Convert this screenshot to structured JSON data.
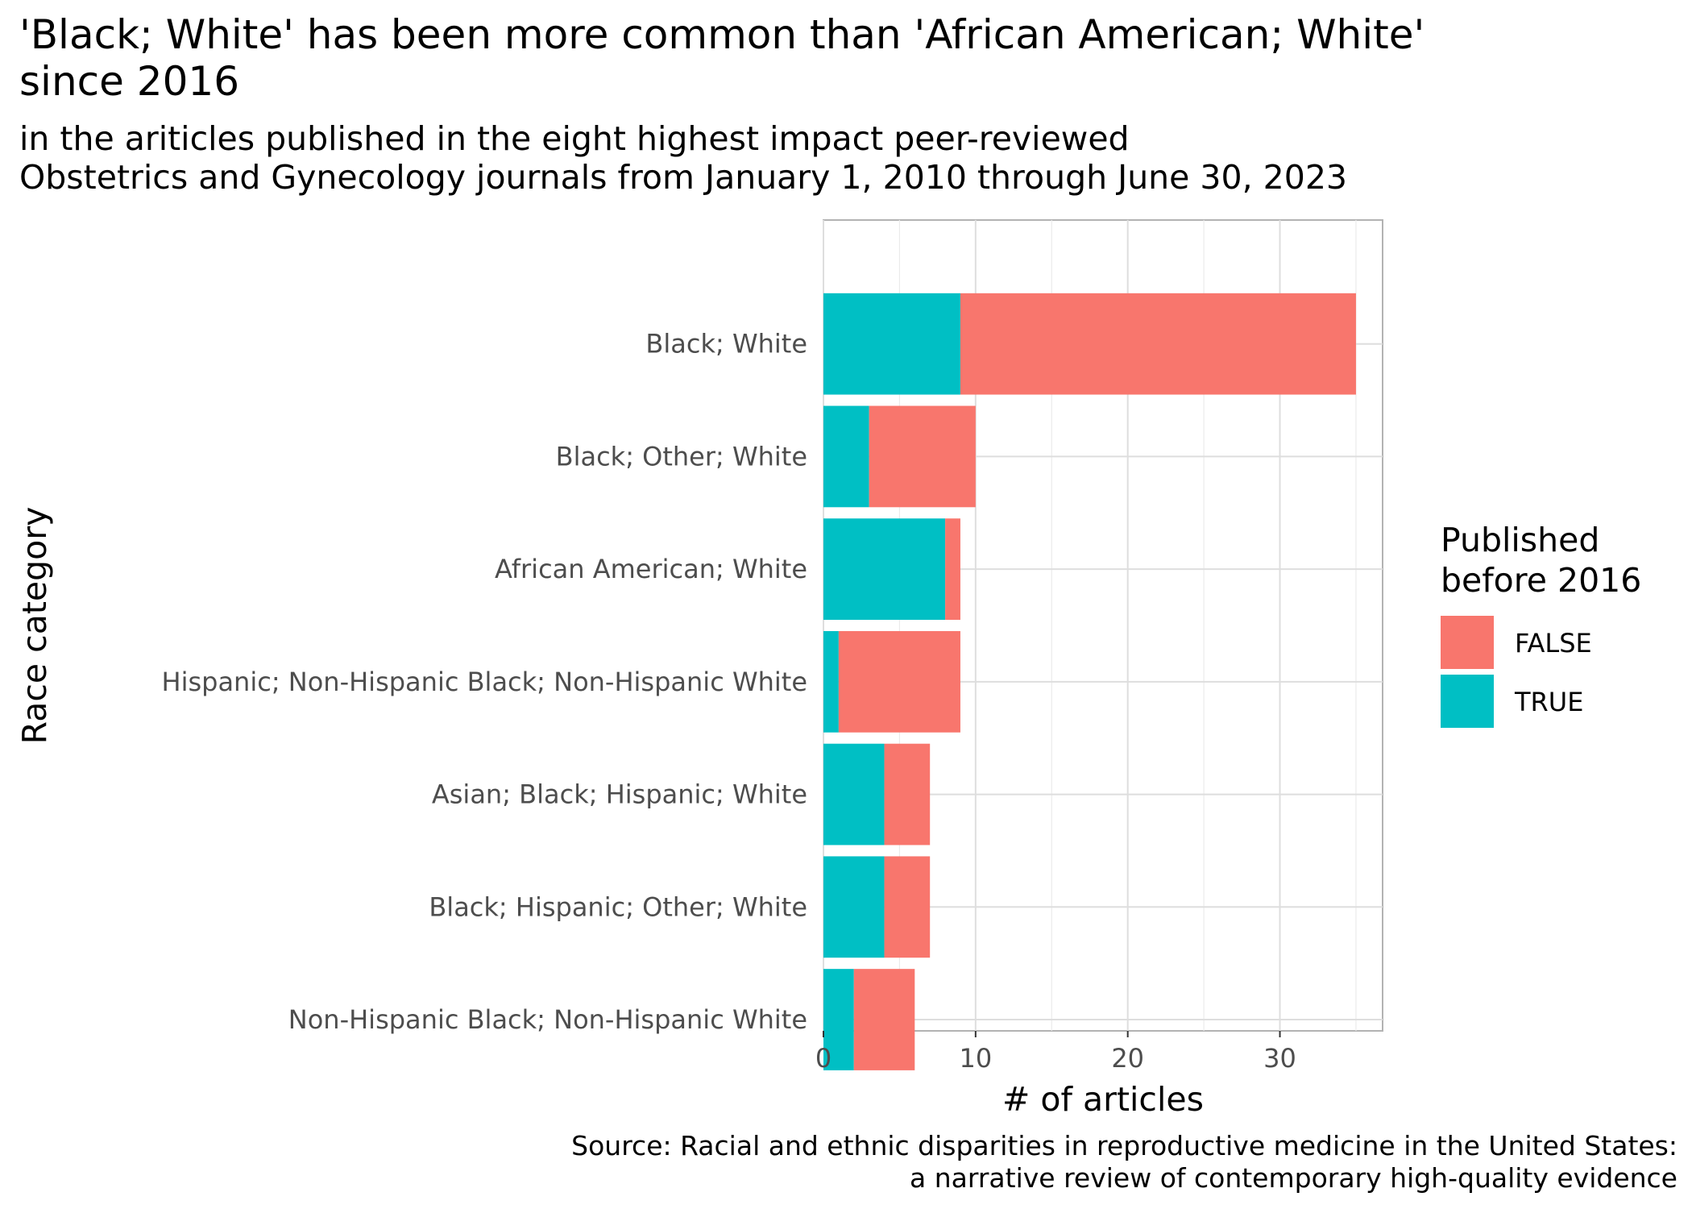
{
  "title": "'Black; White' has been more common than 'African American; White'\nsince 2016",
  "subtitle": "in the ariticles published in the eight highest impact peer-reviewed\nObstetrics and Gynecology journals from January 1, 2010 through June 30, 2023",
  "caption": "Source: Racial and ethnic disparities in reproductive medicine in the United States:\na narrative review of contemporary high-quality evidence",
  "chart_data": {
    "type": "bar",
    "orientation": "horizontal",
    "stacked": true,
    "xlabel": "# of articles",
    "ylabel": "Race category",
    "xlim": [
      0,
      36.75
    ],
    "xticks": [
      0,
      10,
      20,
      30
    ],
    "grid": true,
    "legend_title": "Published\nbefore 2016",
    "legend_position": "right",
    "categories": [
      "Black; White",
      "Black; Other; White",
      "African American; White",
      "Hispanic; Non-Hispanic Black; Non-Hispanic White",
      "Asian; Black; Hispanic; White",
      "Black; Hispanic; Other; White",
      "Non-Hispanic Black; Non-Hispanic White"
    ],
    "series": [
      {
        "name": "FALSE",
        "color": "#F8766D",
        "values": [
          26,
          7,
          1,
          8,
          3,
          3,
          4
        ]
      },
      {
        "name": "TRUE",
        "color": "#00BFC4",
        "values": [
          9,
          3,
          8,
          1,
          4,
          4,
          2
        ]
      }
    ]
  }
}
